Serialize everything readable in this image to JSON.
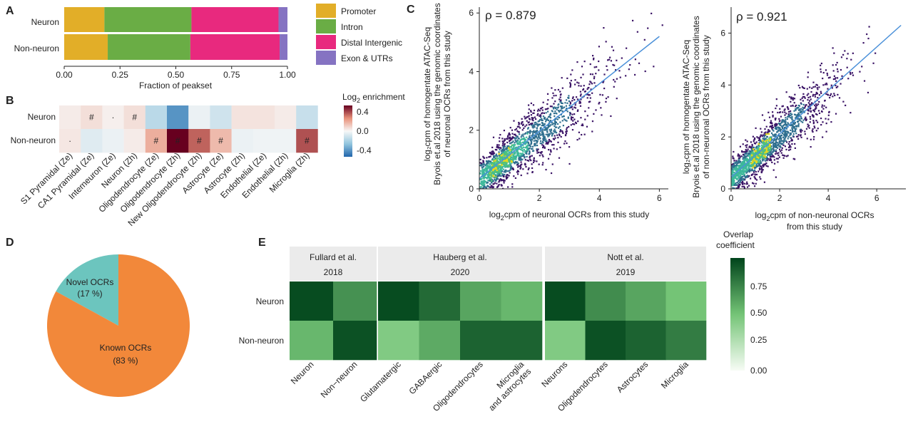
{
  "panels": {
    "a": {
      "letter": "A"
    },
    "b": {
      "letter": "B"
    },
    "c": {
      "letter": "C"
    },
    "d": {
      "letter": "D"
    },
    "e": {
      "letter": "E"
    }
  },
  "chart_data": [
    {
      "id": "A",
      "type": "bar",
      "stacked": true,
      "orientation": "horizontal",
      "categories": [
        "Neuron",
        "Non-neuron"
      ],
      "series": [
        {
          "name": "Promoter",
          "color": "#E2AE28",
          "values": [
            0.18,
            0.195
          ]
        },
        {
          "name": "Intron",
          "color": "#6AAD45",
          "values": [
            0.39,
            0.37
          ]
        },
        {
          "name": "Distal Intergenic",
          "color": "#E8297E",
          "values": [
            0.39,
            0.4
          ]
        },
        {
          "name": "Exon & UTRs",
          "color": "#8573C2",
          "values": [
            0.04,
            0.035
          ]
        }
      ],
      "xlabel": "Fraction of peakset",
      "xlim": [
        0,
        1
      ],
      "xticks": [
        "0.00",
        "0.25",
        "0.50",
        "0.75",
        "1.00"
      ]
    },
    {
      "id": "B",
      "type": "heatmap",
      "rows": [
        "Neuron",
        "Non-neuron"
      ],
      "columns": [
        "S1 Pyramidal (Ze)",
        "CA1 Pyramidal (Ze)",
        "Interneuron (Ze)",
        "Neuron (Zh)",
        "Oligodendrocyte (Ze)",
        "Oligodendrocyte (Zh)",
        "New Oligodendrocyte (Zh)",
        "Astrocyte (Ze)",
        "Astrocyte (Zh)",
        "Endothelial (Ze)",
        "Endothelial (Zh)",
        "Microglia (Zh)"
      ],
      "values": [
        [
          0.03,
          0.06,
          0.02,
          0.06,
          -0.15,
          -0.38,
          -0.03,
          -0.1,
          0.05,
          0.05,
          0.03,
          -0.12
        ],
        [
          0.04,
          -0.06,
          -0.03,
          0.03,
          0.18,
          0.5,
          0.33,
          0.15,
          -0.03,
          -0.02,
          -0.02,
          0.36
        ]
      ],
      "marks": [
        [
          "",
          "#",
          "·",
          "#",
          "",
          "",
          "",
          "",
          "",
          "",
          "",
          ""
        ],
        [
          "·",
          "",
          "",
          "",
          "#",
          "#",
          "#",
          "#",
          "",
          "",
          "",
          "#"
        ]
      ],
      "colorbar_title_main": "Log",
      "colorbar_title_sub": "2",
      "colorbar_title_rest": " enrichment",
      "colorbar_ticks": [
        "0.4",
        "0.0",
        "-0.4"
      ],
      "vmin": -0.5,
      "vmax": 0.5
    },
    {
      "id": "C1",
      "type": "scatter",
      "annotation": "ρ = 0.879",
      "xlabel_pre": "log",
      "xlabel_sub": "2",
      "xlabel_post": "cpm of neuronal OCRs from this study",
      "ylabel_lines": [
        "log₂cpm of homogentate ATAC-Seq",
        "Bryois et.al 2018 using the genomic coordinates",
        "of neuronal OCRs from this study"
      ],
      "xlim": [
        0,
        6.3
      ],
      "ylim": [
        0,
        6.2
      ],
      "xticks": [
        0,
        2,
        4,
        6
      ],
      "yticks": [
        0,
        2,
        4,
        6
      ],
      "fit_line": [
        [
          0,
          0.35
        ],
        [
          6,
          5.2
        ]
      ]
    },
    {
      "id": "C2",
      "type": "scatter",
      "annotation": "ρ = 0.921",
      "xlabel_pre": "log",
      "xlabel_sub": "2",
      "xlabel_post": "cpm of non-neuronal OCRs",
      "xlabel_line2": "from this study",
      "ylabel_lines": [
        "log₂cpm of homogentate ATAC-Seq",
        "Bryois et.al 2018 using the genomic coordinates",
        "of non-neuronal OCRs from this study"
      ],
      "xlim": [
        0,
        7.2
      ],
      "ylim": [
        0,
        7
      ],
      "xticks": [
        0,
        2,
        4,
        6
      ],
      "yticks": [
        0,
        2,
        4,
        6
      ],
      "fit_line": [
        [
          0,
          0.45
        ],
        [
          7,
          6.3
        ]
      ]
    },
    {
      "id": "D",
      "type": "pie",
      "slices": [
        {
          "label": "Novel OCRs",
          "pct_label": "(17 %)",
          "value": 17,
          "color": "#6CC5BE"
        },
        {
          "label": "Known OCRs",
          "pct_label": "(83 %)",
          "value": 83,
          "color": "#F2883A"
        }
      ]
    },
    {
      "id": "E",
      "type": "heatmap",
      "rows": [
        "Neuron",
        "Non-neuron"
      ],
      "groups": [
        {
          "title_line1": "Fullard et al.",
          "title_line2": "2018",
          "columns": [
            "Neuron",
            "Non−neuron"
          ],
          "values": [
            [
              0.97,
              0.7
            ],
            [
              0.55,
              0.95
            ]
          ]
        },
        {
          "title_line1": "Hauberg et al.",
          "title_line2": "2020",
          "columns": [
            "Glutamatergic",
            "GABAergic",
            "Oligodendrocytes",
            "Microglia|and astrocytes"
          ],
          "values": [
            [
              0.97,
              0.85,
              0.62,
              0.55
            ],
            [
              0.45,
              0.6,
              0.88,
              0.88
            ]
          ]
        },
        {
          "title_line1": "Nott et al.",
          "title_line2": "2019",
          "columns": [
            "Neurons",
            "Oligodendrocytes",
            "Astrocytes",
            "Microglia"
          ],
          "values": [
            [
              0.97,
              0.72,
              0.62,
              0.5
            ],
            [
              0.45,
              0.95,
              0.88,
              0.78
            ]
          ]
        }
      ],
      "colorbar_title_line1": "Overlap",
      "colorbar_title_line2": "coefficient",
      "colorbar_ticks": [
        "0.75",
        "0.50",
        "0.25",
        "0.00"
      ],
      "vmin": 0,
      "vmax": 1
    }
  ]
}
